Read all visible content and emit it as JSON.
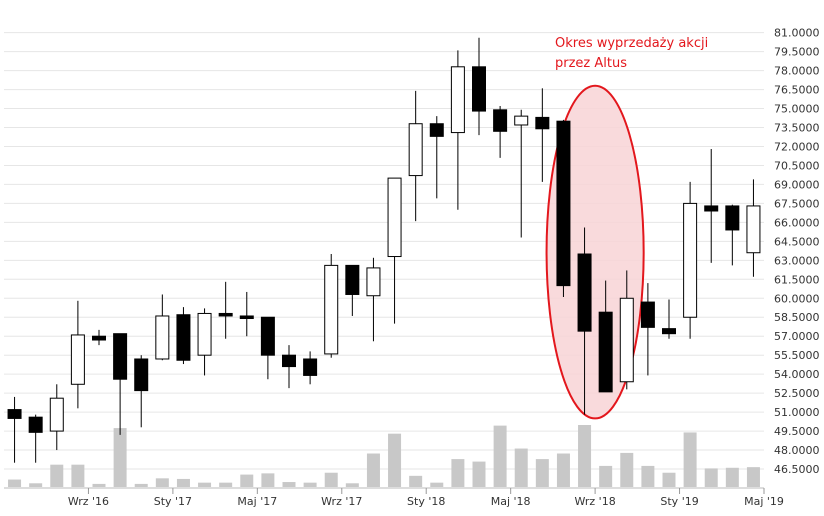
{
  "chart_data": {
    "type": "candlestick",
    "title": "",
    "xlabel": "",
    "ylabel": "",
    "ylim": [
      45.0,
      82.0
    ],
    "y_ticks": [
      81.0,
      79.5,
      78.0,
      76.5,
      75.0,
      73.5,
      72.0,
      70.5,
      69.0,
      67.5,
      66.0,
      64.5,
      63.0,
      61.5,
      60.0,
      58.5,
      57.0,
      55.5,
      54.0,
      52.5,
      51.0,
      49.5,
      48.0,
      46.5
    ],
    "y_tick_labels": [
      "81.0000",
      "79.5000",
      "78.0000",
      "76.5000",
      "75.0000",
      "73.5000",
      "72.0000",
      "70.5000",
      "69.0000",
      "67.5000",
      "66.0000",
      "64.5000",
      "63.0000",
      "61.5000",
      "60.0000",
      "58.5000",
      "57.0000",
      "55.5000",
      "54.0000",
      "52.5000",
      "51.0000",
      "49.5000",
      "48.0000",
      "46.5000"
    ],
    "x_ticks": [
      {
        "label": "Wrz '16",
        "index": 3.5
      },
      {
        "label": "Sty '17",
        "index": 7.5
      },
      {
        "label": "Maj '17",
        "index": 11.5
      },
      {
        "label": "Wrz '17",
        "index": 15.5
      },
      {
        "label": "Sty '18",
        "index": 19.5
      },
      {
        "label": "Maj '18",
        "index": 23.5
      },
      {
        "label": "Wrz '18",
        "index": 27.5
      },
      {
        "label": "Sty '19",
        "index": 31.5
      },
      {
        "label": "Maj '19",
        "index": 35.5
      }
    ],
    "candles": [
      {
        "o": 51.2,
        "h": 52.2,
        "l": 47.0,
        "c": 50.5
      },
      {
        "o": 50.6,
        "h": 50.8,
        "l": 47.0,
        "c": 49.4
      },
      {
        "o": 49.5,
        "h": 53.2,
        "l": 48.0,
        "c": 52.1
      },
      {
        "o": 53.2,
        "h": 59.8,
        "l": 51.3,
        "c": 57.1
      },
      {
        "o": 57.0,
        "h": 57.5,
        "l": 56.3,
        "c": 56.7
      },
      {
        "o": 57.2,
        "h": 57.2,
        "l": 49.2,
        "c": 53.6
      },
      {
        "o": 55.2,
        "h": 55.5,
        "l": 49.8,
        "c": 52.7
      },
      {
        "o": 55.2,
        "h": 60.3,
        "l": 55.1,
        "c": 58.6
      },
      {
        "o": 58.7,
        "h": 59.3,
        "l": 54.8,
        "c": 55.1
      },
      {
        "o": 55.5,
        "h": 59.2,
        "l": 53.9,
        "c": 58.8
      },
      {
        "o": 58.8,
        "h": 61.3,
        "l": 56.8,
        "c": 58.6
      },
      {
        "o": 58.6,
        "h": 60.5,
        "l": 57.0,
        "c": 58.4
      },
      {
        "o": 58.5,
        "h": 58.5,
        "l": 53.6,
        "c": 55.5
      },
      {
        "o": 55.5,
        "h": 56.3,
        "l": 52.9,
        "c": 54.6
      },
      {
        "o": 55.2,
        "h": 55.8,
        "l": 53.2,
        "c": 53.9
      },
      {
        "o": 55.6,
        "h": 63.5,
        "l": 55.3,
        "c": 62.6
      },
      {
        "o": 62.6,
        "h": 62.6,
        "l": 58.6,
        "c": 60.3
      },
      {
        "o": 60.2,
        "h": 63.2,
        "l": 56.6,
        "c": 62.4
      },
      {
        "o": 63.3,
        "h": 69.5,
        "l": 58.0,
        "c": 69.5
      },
      {
        "o": 69.7,
        "h": 76.4,
        "l": 66.1,
        "c": 73.8
      },
      {
        "o": 73.8,
        "h": 74.4,
        "l": 67.9,
        "c": 72.8
      },
      {
        "o": 73.1,
        "h": 79.6,
        "l": 67.0,
        "c": 78.3
      },
      {
        "o": 78.3,
        "h": 80.6,
        "l": 72.9,
        "c": 74.8
      },
      {
        "o": 74.9,
        "h": 75.2,
        "l": 71.1,
        "c": 73.2
      },
      {
        "o": 73.7,
        "h": 74.9,
        "l": 64.8,
        "c": 74.4
      },
      {
        "o": 74.3,
        "h": 76.6,
        "l": 69.2,
        "c": 73.4
      },
      {
        "o": 74.0,
        "h": 74.1,
        "l": 60.1,
        "c": 61.0
      },
      {
        "o": 63.5,
        "h": 65.6,
        "l": 50.8,
        "c": 57.4
      },
      {
        "o": 58.9,
        "h": 61.4,
        "l": 52.6,
        "c": 52.6
      },
      {
        "o": 53.4,
        "h": 62.2,
        "l": 52.8,
        "c": 60.0
      },
      {
        "o": 59.7,
        "h": 61.2,
        "l": 53.9,
        "c": 57.7
      },
      {
        "o": 57.6,
        "h": 59.9,
        "l": 56.8,
        "c": 57.2
      },
      {
        "o": 58.5,
        "h": 69.2,
        "l": 56.8,
        "c": 67.5
      },
      {
        "o": 67.3,
        "h": 71.8,
        "l": 62.8,
        "c": 66.9
      },
      {
        "o": 67.3,
        "h": 67.4,
        "l": 62.6,
        "c": 65.4
      },
      {
        "o": 63.6,
        "h": 69.4,
        "l": 61.7,
        "c": 67.3
      }
    ],
    "volume": [
      0.12,
      0.06,
      0.36,
      0.36,
      0.05,
      0.95,
      0.05,
      0.14,
      0.13,
      0.07,
      0.07,
      0.2,
      0.22,
      0.08,
      0.07,
      0.23,
      0.06,
      0.54,
      0.86,
      0.18,
      0.07,
      0.45,
      0.41,
      0.99,
      0.62,
      0.45,
      0.54,
      1.0,
      0.34,
      0.55,
      0.34,
      0.23,
      0.88,
      0.3,
      0.31,
      0.32
    ],
    "colors": {
      "bull_fill": "#ffffff",
      "bear_fill": "#000000",
      "candle_stroke": "#000000",
      "volume_bar": "#c8c8c8",
      "grid": "#e6e6e6",
      "annotation": "#e3171d",
      "ellipse_fill": "#f8d3d6"
    },
    "grid": true,
    "annotation": {
      "lines": [
        "Okres wyprzedaży akcji",
        "przez Altus"
      ],
      "ellipse_from_index": 26,
      "ellipse_to_index": 29,
      "ellipse_y_range": [
        50.5,
        76.8
      ]
    }
  }
}
